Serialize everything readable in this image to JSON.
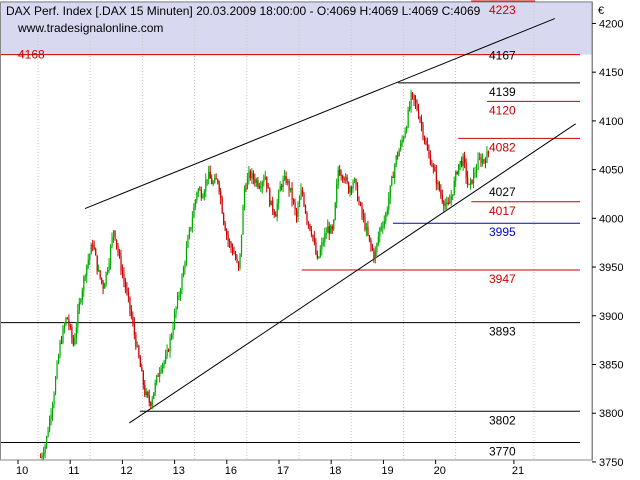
{
  "header": {
    "title": "DAX Perf. Index [.DAX  15 Minuten] 20.03.2009 18:00:00 - O:4069 H:4069 L:4069 C:4069",
    "watermark": "www.tradesignalonline.com",
    "currency": "€"
  },
  "chart_data": {
    "type": "candlestick",
    "title": "DAX Perf. Index [.DAX  15 Minuten] 20.03.2009 18:00:00 - O:4069 H:4069 L:4069 C:4069",
    "ylim": [
      3752,
      4222
    ],
    "y_ticks": [
      3750,
      3800,
      3850,
      3900,
      3950,
      4000,
      4050,
      4100,
      4150,
      4200
    ],
    "x_ticks": [
      "10",
      "11",
      "12",
      "13",
      "16",
      "17",
      "18",
      "19",
      "20",
      "21"
    ],
    "x_tick_index": [
      0,
      1,
      2,
      3,
      4,
      5,
      6,
      7,
      8,
      9.5
    ],
    "shaded_band": {
      "from": 4168,
      "to": 4223,
      "color": "#d8d8f0"
    },
    "levels": [
      {
        "value": 4223,
        "label": "4223",
        "color": "#cc0000",
        "from_day": 8.3
      },
      {
        "value": 4168,
        "label": "4168",
        "color": "#cc0000",
        "from_day": -0.5,
        "label_left": true
      },
      {
        "value": 4139,
        "label": "4139",
        "color": "#000000",
        "from_day": 6.9
      },
      {
        "value": 4120,
        "label": "4120",
        "color": "#cc0000",
        "from_day": 8.6
      },
      {
        "value": 4082,
        "label": "4082",
        "color": "#cc0000",
        "from_day": 8.05
      },
      {
        "value": 4017,
        "label": "4017",
        "color": "#cc0000",
        "from_day": 8.3
      },
      {
        "value": 3995,
        "label": "3995",
        "color": "#0000cc",
        "from_day": 6.8
      },
      {
        "value": 3947,
        "label": "3947",
        "color": "#cc0000",
        "from_day": 5.05
      },
      {
        "value": 3893,
        "label": "3893",
        "color": "#000000",
        "from_day": -0.5
      },
      {
        "value": 3802,
        "label": "3802",
        "color": "#000000",
        "from_day": 1.95
      },
      {
        "value": 3770,
        "label": "3770",
        "color": "#000000",
        "from_day": -0.5
      }
    ],
    "level_labels_only": [
      {
        "value": 4167,
        "label": "4167",
        "color": "#000000"
      },
      {
        "value": 4027,
        "label": "4027",
        "color": "#000000"
      }
    ],
    "trendlines": [
      {
        "x1": 0.9,
        "y1": 4010,
        "x2": 9.9,
        "y2": 4205
      },
      {
        "x1": 1.75,
        "y1": 3790,
        "x2": 10.3,
        "y2": 4097
      }
    ],
    "path": [
      [
        0.05,
        3755
      ],
      [
        0.15,
        3770
      ],
      [
        0.3,
        3820
      ],
      [
        0.42,
        3870
      ],
      [
        0.55,
        3900
      ],
      [
        0.68,
        3870
      ],
      [
        0.8,
        3915
      ],
      [
        0.92,
        3950
      ],
      [
        1.05,
        3975
      ],
      [
        1.15,
        3945
      ],
      [
        1.25,
        3930
      ],
      [
        1.35,
        3955
      ],
      [
        1.45,
        3990
      ],
      [
        1.55,
        3960
      ],
      [
        1.65,
        3935
      ],
      [
        1.75,
        3910
      ],
      [
        1.85,
        3880
      ],
      [
        1.95,
        3850
      ],
      [
        2.05,
        3820
      ],
      [
        2.15,
        3810
      ],
      [
        2.25,
        3830
      ],
      [
        2.35,
        3850
      ],
      [
        2.45,
        3855
      ],
      [
        2.55,
        3880
      ],
      [
        2.65,
        3910
      ],
      [
        2.75,
        3935
      ],
      [
        2.85,
        3970
      ],
      [
        2.95,
        4000
      ],
      [
        3.05,
        4030
      ],
      [
        3.15,
        4025
      ],
      [
        3.25,
        4045
      ],
      [
        3.35,
        4035
      ],
      [
        3.45,
        4040
      ],
      [
        3.55,
        4000
      ],
      [
        3.65,
        3975
      ],
      [
        3.75,
        3965
      ],
      [
        3.85,
        3945
      ],
      [
        3.95,
        4030
      ],
      [
        4.05,
        4045
      ],
      [
        4.15,
        4040
      ],
      [
        4.25,
        4035
      ],
      [
        4.35,
        4045
      ],
      [
        4.45,
        4015
      ],
      [
        4.55,
        4005
      ],
      [
        4.65,
        4035
      ],
      [
        4.75,
        4040
      ],
      [
        4.85,
        4025
      ],
      [
        4.95,
        4000
      ],
      [
        5.05,
        4030
      ],
      [
        5.15,
        4000
      ],
      [
        5.25,
        3985
      ],
      [
        5.35,
        3955
      ],
      [
        5.45,
        3975
      ],
      [
        5.55,
        3990
      ],
      [
        5.65,
        3985
      ],
      [
        5.75,
        4050
      ],
      [
        5.85,
        4045
      ],
      [
        5.95,
        4030
      ],
      [
        6.05,
        4040
      ],
      [
        6.15,
        4015
      ],
      [
        6.25,
        3995
      ],
      [
        6.35,
        3975
      ],
      [
        6.45,
        3960
      ],
      [
        6.55,
        3990
      ],
      [
        6.65,
        4000
      ],
      [
        6.75,
        4030
      ],
      [
        6.85,
        4060
      ],
      [
        6.95,
        4075
      ],
      [
        7.05,
        4095
      ],
      [
        7.15,
        4125
      ],
      [
        7.25,
        4115
      ],
      [
        7.35,
        4095
      ],
      [
        7.45,
        4070
      ],
      [
        7.55,
        4055
      ],
      [
        7.65,
        4035
      ],
      [
        7.75,
        4020
      ],
      [
        7.85,
        4010
      ],
      [
        7.95,
        4030
      ],
      [
        8.05,
        4055
      ],
      [
        8.15,
        4060
      ],
      [
        8.25,
        4030
      ],
      [
        8.35,
        4045
      ],
      [
        8.45,
        4060
      ],
      [
        8.55,
        4060
      ],
      [
        8.65,
        4069
      ]
    ]
  }
}
